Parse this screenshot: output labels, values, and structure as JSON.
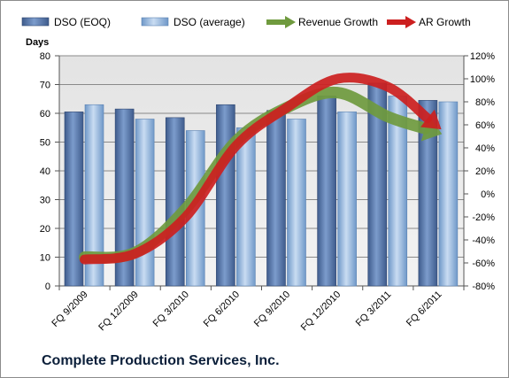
{
  "chart_data": {
    "type": "bar",
    "title": "Complete Production Services, Inc.",
    "ylabel": "Days",
    "ylim": [
      0,
      80
    ],
    "y_ticks": [
      "0",
      "10",
      "20",
      "30",
      "40",
      "50",
      "60",
      "70",
      "80"
    ],
    "y2lim": [
      -80,
      120
    ],
    "y2_ticks": [
      "-80%",
      "-60%",
      "-40%",
      "-20%",
      "0%",
      "20%",
      "40%",
      "60%",
      "80%",
      "100%",
      "120%"
    ],
    "categories": [
      "FQ 9/2009",
      "FQ 12/2009",
      "FQ 3/2010",
      "FQ 6/2010",
      "FQ 9/2010",
      "FQ 12/2010",
      "FQ 3/2011",
      "FQ 6/2011"
    ],
    "series": [
      {
        "name": "DSO (EOQ)",
        "type": "bar",
        "color": "#4f6fa3",
        "values": [
          60.5,
          61.5,
          58.5,
          63,
          61,
          66,
          70.5,
          64.5
        ]
      },
      {
        "name": "DSO (average)",
        "type": "bar",
        "color": "#8fb4df",
        "values": [
          63,
          58,
          54,
          55,
          58,
          60.5,
          66,
          64
        ]
      },
      {
        "name": "Revenue Growth",
        "type": "arrow",
        "color": "#6f9a3e",
        "axis": "secondary",
        "values": [
          -55,
          -51,
          -13,
          46,
          75,
          88,
          67,
          53
        ]
      },
      {
        "name": "AR Growth",
        "type": "arrow",
        "color": "#cc1f1f",
        "axis": "secondary",
        "values": [
          -57,
          -52,
          -20,
          42,
          75,
          100,
          93,
          58
        ]
      }
    ],
    "grid": true,
    "legend_position": "top"
  }
}
